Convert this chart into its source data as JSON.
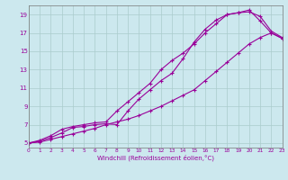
{
  "xlabel": "Windchill (Refroidissement éolien,°C)",
  "xlim": [
    0,
    23
  ],
  "ylim": [
    4.5,
    20
  ],
  "xticks": [
    0,
    1,
    2,
    3,
    4,
    5,
    6,
    7,
    8,
    9,
    10,
    11,
    12,
    13,
    14,
    15,
    16,
    17,
    18,
    19,
    20,
    21,
    22,
    23
  ],
  "yticks": [
    5,
    7,
    9,
    11,
    13,
    15,
    17,
    19
  ],
  "bg_color": "#cce8ee",
  "grid_color": "#aacccc",
  "line_color": "#990099",
  "line1_x": [
    0,
    1,
    2,
    3,
    4,
    5,
    6,
    7,
    8,
    9,
    10,
    11,
    12,
    13,
    14,
    15,
    16,
    17,
    18,
    19,
    20,
    21,
    22,
    23
  ],
  "line1_y": [
    5,
    5.3,
    5.8,
    6.5,
    6.8,
    7.0,
    7.2,
    7.3,
    8.5,
    9.5,
    10.5,
    11.5,
    13.0,
    14.0,
    14.8,
    15.8,
    17.0,
    18.0,
    19.0,
    19.2,
    19.3,
    18.8,
    17.2,
    16.5
  ],
  "line2_x": [
    0,
    1,
    2,
    3,
    4,
    5,
    6,
    7,
    8,
    9,
    10,
    11,
    12,
    13,
    14,
    15,
    16,
    17,
    18,
    19,
    20,
    21,
    22,
    23
  ],
  "line2_y": [
    5,
    5.2,
    5.6,
    6.1,
    6.7,
    6.8,
    7.0,
    7.1,
    7.0,
    8.5,
    9.8,
    10.8,
    11.8,
    12.6,
    14.2,
    16.0,
    17.4,
    18.4,
    19.0,
    19.2,
    19.5,
    18.3,
    17.0,
    16.4
  ],
  "line3_x": [
    0,
    1,
    2,
    3,
    4,
    5,
    6,
    7,
    8,
    9,
    10,
    11,
    12,
    13,
    14,
    15,
    16,
    17,
    18,
    19,
    20,
    21,
    22,
    23
  ],
  "line3_y": [
    5,
    5.1,
    5.4,
    5.7,
    6.0,
    6.3,
    6.6,
    7.0,
    7.3,
    7.6,
    8.0,
    8.5,
    9.0,
    9.6,
    10.2,
    10.8,
    11.8,
    12.8,
    13.8,
    14.8,
    15.8,
    16.5,
    17.0,
    16.4
  ]
}
